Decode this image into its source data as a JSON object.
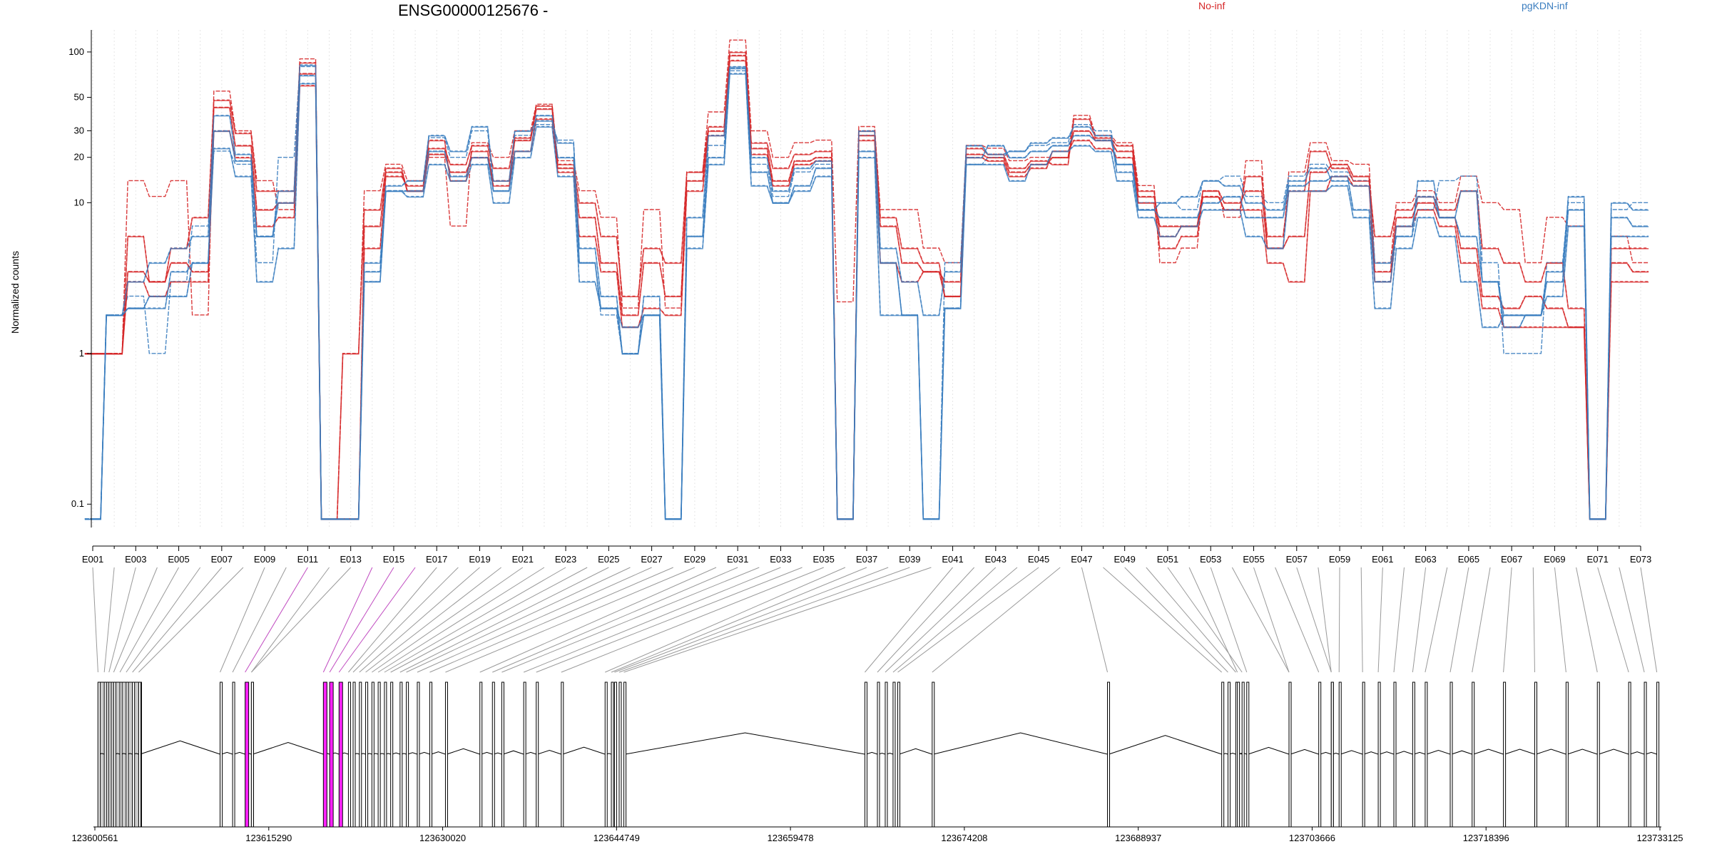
{
  "title": "ENSG00000125676 -",
  "ylabel": "Normalized counts",
  "legend": [
    {
      "label": "No-inf",
      "color": "#d62728"
    },
    {
      "label": "pgKDN-inf",
      "color": "#3a7dbf"
    }
  ],
  "y_ticks": [
    "100",
    "50",
    "30",
    "20",
    "10",
    "1",
    "0.1"
  ],
  "exon_tick_labels": [
    "E001",
    "E003",
    "E005",
    "E007",
    "E009",
    "E011",
    "E013",
    "E015",
    "E017",
    "E019",
    "E021",
    "E023",
    "E025",
    "E027",
    "E029",
    "E031",
    "E033",
    "E035",
    "E037",
    "E039",
    "E041",
    "E043",
    "E045",
    "E047",
    "E049",
    "E051",
    "E053",
    "E055",
    "E057",
    "E059",
    "E061",
    "E063",
    "E065",
    "E067",
    "E069",
    "E071",
    "E073"
  ],
  "genomic_tick_labels": [
    "123600561",
    "123615290",
    "123630020",
    "123644749",
    "123659478",
    "123674208",
    "123688937",
    "123703666",
    "123718396",
    "123733125"
  ],
  "chart_data": {
    "type": "line",
    "title": "ENSG00000125676 -",
    "ylabel": "Normalized counts",
    "yscale": "log",
    "ylim": [
      0.07,
      140
    ],
    "x": [
      "E001",
      "E002",
      "E003",
      "E004",
      "E005",
      "E006",
      "E007",
      "E008",
      "E009",
      "E010",
      "E011",
      "E012",
      "E013",
      "E014",
      "E015",
      "E016",
      "E017",
      "E018",
      "E019",
      "E020",
      "E021",
      "E022",
      "E023",
      "E024",
      "E025",
      "E026",
      "E027",
      "E028",
      "E029",
      "E030",
      "E031",
      "E032",
      "E033",
      "E034",
      "E035",
      "E036",
      "E037",
      "E038",
      "E039",
      "E040",
      "E041",
      "E042",
      "E043",
      "E044",
      "E045",
      "E046",
      "E047",
      "E048",
      "E049",
      "E050",
      "E051",
      "E052",
      "E053",
      "E054",
      "E055",
      "E056",
      "E057",
      "E058",
      "E059",
      "E060",
      "E061",
      "E062",
      "E063",
      "E064",
      "E065",
      "E066",
      "E067",
      "E068",
      "E069",
      "E070",
      "E071",
      "E072",
      "E073"
    ],
    "mean_profile": [
      1,
      1.5,
      3.5,
      3,
      4,
      5,
      40,
      22,
      8,
      10,
      75,
      0.08,
      0.08,
      6,
      15,
      13,
      24,
      15,
      22,
      13,
      24,
      40,
      17,
      7,
      4,
      2,
      3,
      3,
      14,
      30,
      90,
      22,
      13,
      18,
      20,
      0.08,
      28,
      5,
      2,
      3,
      2,
      22,
      20,
      16,
      20,
      22,
      28,
      24,
      20,
      12,
      7,
      8,
      12,
      10,
      10,
      7,
      5,
      15,
      18,
      15,
      4,
      8,
      10,
      8,
      6,
      3,
      3,
      3,
      3,
      2,
      0.08,
      6,
      5
    ],
    "series": [
      {
        "group": "No-inf",
        "color": "#d62728",
        "values": [
          1,
          1,
          14,
          11,
          14,
          1.8,
          55,
          30,
          14,
          9,
          90,
          0.08,
          1,
          12,
          18,
          14,
          20,
          7,
          25,
          20,
          30,
          45,
          19,
          12,
          8,
          2,
          9,
          2,
          16,
          40,
          120,
          30,
          20,
          25,
          26,
          2.2,
          32,
          9,
          9,
          5,
          4,
          24,
          23,
          19,
          20,
          20,
          38,
          28,
          25,
          13,
          4,
          5,
          12,
          8,
          19,
          5,
          16,
          25,
          19,
          18,
          4,
          10,
          12,
          10,
          15,
          10,
          9,
          4,
          8,
          7,
          0.08,
          6,
          4
        ]
      },
      {
        "group": "No-inf",
        "color": "#d62728",
        "values": [
          1,
          1,
          6,
          3,
          5,
          8,
          48,
          29,
          12,
          12,
          85,
          0.08,
          1,
          9,
          17,
          12,
          23,
          18,
          24,
          17,
          27,
          44,
          18,
          10,
          6,
          2.4,
          5,
          4,
          16,
          32,
          100,
          25,
          17,
          21,
          22,
          0.08,
          30,
          8,
          5,
          4,
          2.4,
          23,
          21,
          17,
          19,
          18,
          36,
          27,
          24,
          12,
          6,
          7,
          11,
          9,
          15,
          6,
          12,
          22,
          17,
          14,
          6,
          9,
          11,
          9,
          12,
          5,
          4,
          3,
          4,
          2,
          0.08,
          5,
          5
        ]
      },
      {
        "group": "No-inf",
        "color": "#d62728",
        "values": [
          1,
          1,
          3.5,
          3,
          4,
          3.5,
          43,
          24,
          9,
          10,
          72,
          0.08,
          0.08,
          7,
          16,
          12,
          21,
          16,
          20,
          14,
          26,
          42,
          17,
          8,
          4,
          1.8,
          4,
          2.4,
          14,
          30,
          95,
          23,
          14,
          19,
          20,
          0.08,
          28,
          7,
          4,
          3.5,
          3,
          21,
          20,
          16,
          18,
          20,
          30,
          26,
          22,
          11,
          7,
          7,
          12,
          10,
          12,
          5,
          6,
          16,
          18,
          15,
          3.5,
          8,
          10,
          8,
          5,
          2.4,
          2,
          2.4,
          2,
          1.5,
          0.08,
          4,
          3.5
        ]
      },
      {
        "group": "No-inf",
        "color": "#d62728",
        "values": [
          1,
          1,
          3,
          2.4,
          3,
          3,
          30,
          20,
          7,
          8,
          60,
          0.08,
          0.08,
          5,
          15,
          13,
          26,
          14,
          22,
          13,
          22,
          36,
          16,
          6,
          3.5,
          1.5,
          2,
          1.8,
          12,
          28,
          88,
          21,
          13,
          18,
          19,
          0.08,
          26,
          4,
          3,
          3.5,
          2.4,
          20,
          19,
          15,
          17,
          22,
          26,
          23,
          20,
          10,
          5,
          6,
          11,
          9,
          9,
          4,
          3,
          12,
          15,
          13,
          3,
          7,
          9,
          7,
          4,
          2,
          1.5,
          1.5,
          1.5,
          1.5,
          0.08,
          3,
          3
        ]
      },
      {
        "group": "pgKDN-inf",
        "color": "#3a7dbf",
        "values": [
          0.08,
          1.8,
          2.4,
          1,
          3,
          7,
          22,
          18,
          4,
          20,
          80,
          0.08,
          0.08,
          3,
          12,
          12,
          27,
          20,
          30,
          12,
          28,
          33,
          26,
          4,
          1.8,
          1,
          1.8,
          0.08,
          6,
          24,
          75,
          18,
          11,
          16,
          18,
          0.08,
          28,
          4,
          1.8,
          0.08,
          4,
          18,
          20,
          22,
          24,
          25,
          33,
          30,
          18,
          10,
          10,
          9,
          14,
          15,
          11,
          10,
          15,
          18,
          16,
          14,
          3,
          6,
          9,
          14,
          15,
          4,
          1,
          1,
          4,
          10,
          0.08,
          9,
          10
        ]
      },
      {
        "group": "pgKDN-inf",
        "color": "#3a7dbf",
        "values": [
          0.08,
          1.8,
          3,
          4,
          5,
          6,
          38,
          21,
          6,
          12,
          82,
          0.08,
          0.08,
          4,
          13,
          14,
          28,
          22,
          32,
          14,
          30,
          35,
          25,
          5,
          2.4,
          1,
          2.4,
          0.08,
          8,
          28,
          80,
          20,
          12,
          17,
          19,
          0.08,
          30,
          5,
          3,
          1.8,
          3.5,
          24,
          21,
          22,
          25,
          27,
          32,
          28,
          16,
          9,
          10,
          11,
          14,
          13,
          10,
          9,
          14,
          17,
          14,
          13,
          4,
          6,
          14,
          8,
          12,
          3,
          1.8,
          1.8,
          3.5,
          11,
          0.08,
          10,
          9
        ]
      },
      {
        "group": "pgKDN-inf",
        "color": "#3a7dbf",
        "values": [
          0.08,
          1.8,
          2,
          2.4,
          2.4,
          4,
          30,
          19,
          6,
          10,
          70,
          0.08,
          0.08,
          3.5,
          12,
          12,
          22,
          15,
          20,
          12,
          22,
          38,
          20,
          4,
          2,
          1.5,
          1.8,
          0.08,
          6,
          20,
          78,
          16,
          10,
          13,
          17,
          0.08,
          22,
          4,
          1.8,
          0.08,
          2,
          20,
          24,
          20,
          22,
          24,
          28,
          26,
          18,
          9,
          8,
          8,
          10,
          11,
          8,
          8,
          13,
          14,
          15,
          9,
          3,
          7,
          11,
          8,
          6,
          3,
          1.5,
          1.8,
          3,
          9,
          0.08,
          8,
          7
        ]
      },
      {
        "group": "pgKDN-inf",
        "color": "#3a7dbf",
        "values": [
          0.08,
          1.8,
          2,
          2,
          3.5,
          4,
          23,
          15,
          3,
          5,
          62,
          0.08,
          0.08,
          3,
          12,
          11,
          18,
          14,
          18,
          10,
          20,
          32,
          15,
          3,
          2,
          1,
          1.8,
          0.08,
          5,
          18,
          72,
          13,
          10,
          12,
          15,
          0.08,
          20,
          1.8,
          1.8,
          0.08,
          2,
          18,
          18,
          14,
          18,
          22,
          24,
          22,
          14,
          8,
          6,
          7,
          9,
          9,
          6,
          5,
          12,
          12,
          13,
          8,
          2,
          5,
          8,
          6,
          3,
          1.5,
          1.8,
          1.8,
          2.4,
          7,
          0.08,
          6,
          6
        ]
      }
    ],
    "gene_model": {
      "genomic_range": [
        123600561,
        123733125
      ],
      "highlighted_exons": [
        "E011",
        "E014"
      ]
    }
  }
}
